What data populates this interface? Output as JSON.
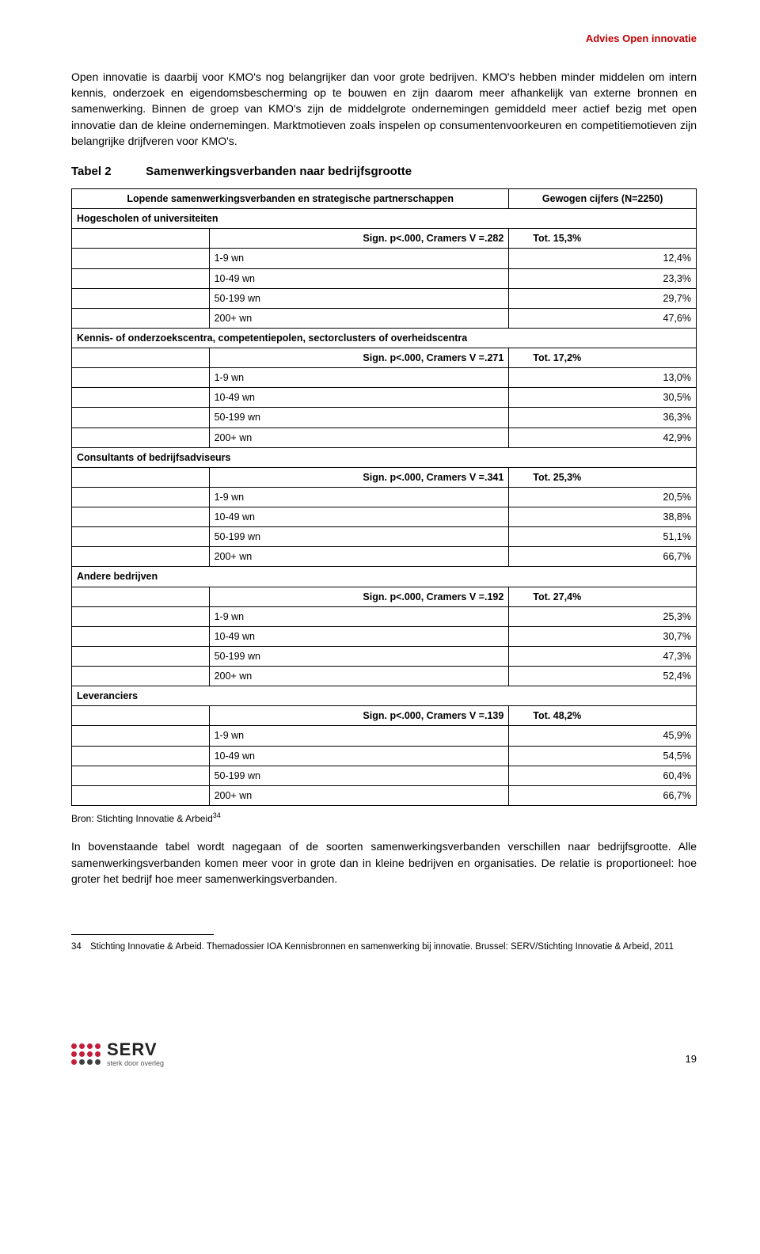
{
  "header": {
    "title": "Advies Open innovatie"
  },
  "intro_para": "Open innovatie is daarbij voor KMO's nog belangrijker dan voor grote bedrijven. KMO's hebben minder middelen om intern kennis, onderzoek en eigendomsbescherming op te bouwen en zijn daarom meer afhankelijk van externe bronnen en samenwerking. Binnen de groep van KMO's zijn de middelgrote ondernemingen gemiddeld meer actief bezig met open innovatie dan de kleine ondernemingen. Marktmotieven zoals inspelen op consumentenvoorkeuren en competitiemotieven zijn belangrijke drijfveren voor KMO's.",
  "table_title_num": "Tabel 2",
  "table_title_text": "Samenwerkingsverbanden naar bedrijfsgrootte",
  "table": {
    "header_left": "Lopende samenwerkingsverbanden en strategische partnerschappen",
    "header_right": "Gewogen cijfers (N=2250)",
    "sections": [
      {
        "title": "Hogescholen of universiteiten",
        "sign": "Sign. p<.000, Cramers V =.282",
        "tot": "Tot. 15,3%",
        "rows": [
          {
            "label": "1-9 wn",
            "val": "12,4%"
          },
          {
            "label": "10-49 wn",
            "val": "23,3%"
          },
          {
            "label": "50-199 wn",
            "val": "29,7%"
          },
          {
            "label": "200+ wn",
            "val": "47,6%"
          }
        ]
      },
      {
        "title": "Kennis- of onderzoekscentra, competentiepolen, sectorclusters of overheidscentra",
        "sign": "Sign. p<.000, Cramers V =.271",
        "tot": "Tot. 17,2%",
        "rows": [
          {
            "label": "1-9 wn",
            "val": "13,0%"
          },
          {
            "label": "10-49 wn",
            "val": "30,5%"
          },
          {
            "label": "50-199 wn",
            "val": "36,3%"
          },
          {
            "label": "200+ wn",
            "val": "42,9%"
          }
        ]
      },
      {
        "title": "Consultants of bedrijfsadviseurs",
        "sign": "Sign. p<.000, Cramers V =.341",
        "tot": "Tot. 25,3%",
        "rows": [
          {
            "label": "1-9 wn",
            "val": "20,5%"
          },
          {
            "label": "10-49 wn",
            "val": "38,8%"
          },
          {
            "label": "50-199 wn",
            "val": "51,1%"
          },
          {
            "label": "200+ wn",
            "val": "66,7%"
          }
        ]
      },
      {
        "title": "Andere bedrijven",
        "sign": "Sign. p<.000, Cramers V =.192",
        "tot": "Tot. 27,4%",
        "rows": [
          {
            "label": "1-9 wn",
            "val": "25,3%"
          },
          {
            "label": "10-49 wn",
            "val": "30,7%"
          },
          {
            "label": "50-199 wn",
            "val": "47,3%"
          },
          {
            "label": "200+ wn",
            "val": "52,4%"
          }
        ]
      },
      {
        "title": "Leveranciers",
        "sign": "Sign. p<.000, Cramers V =.139",
        "tot": "Tot. 48,2%",
        "rows": [
          {
            "label": "1-9 wn",
            "val": "45,9%"
          },
          {
            "label": "10-49 wn",
            "val": "54,5%"
          },
          {
            "label": "50-199 wn",
            "val": "60,4%"
          },
          {
            "label": "200+ wn",
            "val": "66,7%"
          }
        ]
      }
    ]
  },
  "source_text": "Bron: Stichting Innovatie & Arbeid",
  "source_sup": "34",
  "closing_para": "In bovenstaande tabel wordt nagegaan of de soorten samenwerkingsverbanden verschillen naar bedrijfsgrootte. Alle samenwerkingsverbanden komen meer voor in grote dan in kleine bedrijven en organisaties. De relatie is proportioneel: hoe groter het bedrijf hoe meer samenwerkingsverbanden.",
  "footnote": {
    "num": "34",
    "text": "Stichting Innovatie & Arbeid. Themadossier IOA Kennisbronnen en samenwerking bij innovatie. Brussel: SERV/Stichting Innovatie & Arbeid, 2011"
  },
  "logo": {
    "brand": "SERV",
    "tagline": "sterk door overleg",
    "dot_colors": [
      "#c41e3a",
      "#c41e3a",
      "#c41e3a",
      "#c41e3a",
      "#c41e3a",
      "#c41e3a",
      "#c41e3a",
      "#c41e3a",
      "#c41e3a",
      "#404040",
      "#404040",
      "#404040"
    ]
  },
  "page_number": "19",
  "colors": {
    "accent_red": "#c00000",
    "text": "#000000",
    "bg": "#ffffff",
    "border": "#000000"
  }
}
